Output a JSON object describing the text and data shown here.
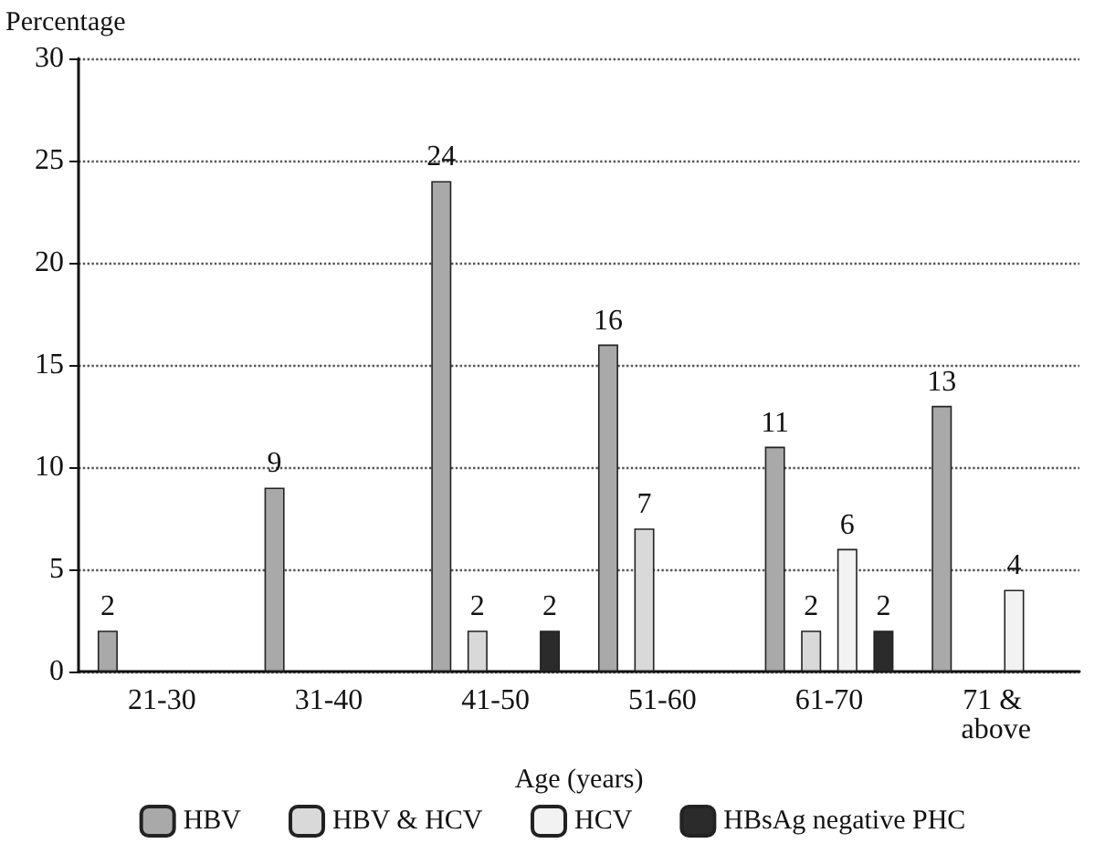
{
  "chart_data": {
    "type": "bar",
    "ylabel": "Percentage",
    "xlabel": "Age (years)",
    "categories": [
      "21-30",
      "31-40",
      "41-50",
      "51-60",
      "61-70",
      "71 & above"
    ],
    "series": [
      {
        "name": "HBV",
        "color": "#a9a9a9",
        "values": [
          2,
          9,
          24,
          16,
          11,
          13
        ]
      },
      {
        "name": "HBV & HCV",
        "color": "#d9d9d9",
        "values": [
          null,
          null,
          2,
          7,
          2,
          null
        ]
      },
      {
        "name": "HCV",
        "color": "#f2f2f2",
        "values": [
          null,
          null,
          null,
          null,
          6,
          4
        ]
      },
      {
        "name": "HBsAg negative PHC",
        "color": "#2b2b2b",
        "values": [
          null,
          null,
          2,
          null,
          2,
          null
        ]
      }
    ],
    "ylim": [
      0,
      30
    ],
    "yticks": [
      0,
      5,
      10,
      15,
      20,
      25,
      30
    ],
    "grid": "y",
    "line_style": "dotted",
    "legend": "bottom",
    "data_labels": true
  }
}
